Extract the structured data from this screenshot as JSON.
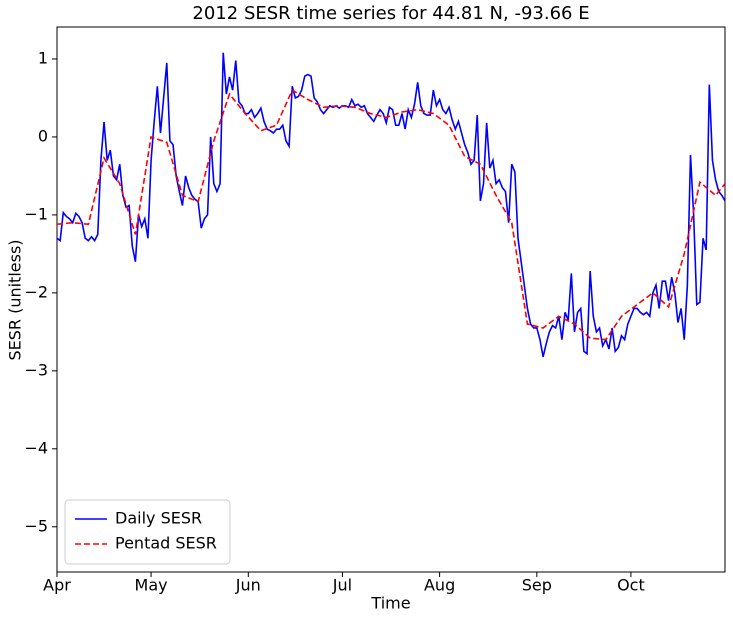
{
  "chart_data": {
    "type": "line",
    "title": "2012 SESR time series for 44.81 N, -93.66 E",
    "x_label": "Time",
    "y_label": "SESR (unitless)",
    "xlim": [
      0,
      213
    ],
    "ylim": [
      -5.58,
      1.41
    ],
    "xticks": [
      {
        "value": 0,
        "label": "Apr"
      },
      {
        "value": 30,
        "label": "May"
      },
      {
        "value": 61,
        "label": "Jun"
      },
      {
        "value": 91,
        "label": "Jul"
      },
      {
        "value": 122,
        "label": "Aug"
      },
      {
        "value": 153,
        "label": "Sep"
      },
      {
        "value": 183,
        "label": "Oct"
      }
    ],
    "yticks": [
      {
        "value": -5,
        "label": "−5"
      },
      {
        "value": -4,
        "label": "−4"
      },
      {
        "value": -3,
        "label": "−3"
      },
      {
        "value": -2,
        "label": "−2"
      },
      {
        "value": -1,
        "label": "−1"
      },
      0,
      1
    ],
    "grid": false,
    "legend": "lower left",
    "series": [
      {
        "name": "Daily SESR",
        "color": "#0000ff",
        "dash": "solid",
        "x": [
          0,
          1,
          2,
          3,
          4,
          5,
          6,
          7,
          8,
          9,
          10,
          11,
          12,
          13,
          14,
          15,
          16,
          17,
          18,
          19,
          20,
          21,
          22,
          23,
          24,
          25,
          26,
          27,
          28,
          29,
          30,
          31,
          32,
          33,
          34,
          35,
          36,
          37,
          38,
          39,
          40,
          41,
          42,
          43,
          44,
          45,
          46,
          47,
          48,
          49,
          50,
          51,
          52,
          53,
          54,
          55,
          56,
          57,
          58,
          59,
          60,
          61,
          62,
          63,
          64,
          65,
          66,
          67,
          68,
          69,
          70,
          71,
          72,
          73,
          74,
          75,
          76,
          77,
          78,
          79,
          80,
          81,
          82,
          83,
          84,
          85,
          86,
          87,
          88,
          89,
          90,
          91,
          92,
          93,
          94,
          95,
          96,
          97,
          98,
          99,
          100,
          101,
          102,
          103,
          104,
          105,
          106,
          107,
          108,
          109,
          110,
          111,
          112,
          113,
          114,
          115,
          116,
          117,
          118,
          119,
          120,
          121,
          122,
          123,
          124,
          125,
          126,
          127,
          128,
          129,
          130,
          131,
          132,
          133,
          134,
          135,
          136,
          137,
          138,
          139,
          140,
          141,
          142,
          143,
          144,
          145,
          146,
          147,
          148,
          149,
          150,
          151,
          152,
          153,
          154,
          155,
          156,
          157,
          158,
          159,
          160,
          161,
          162,
          163,
          164,
          165,
          166,
          167,
          168,
          169,
          170,
          171,
          172,
          173,
          174,
          175,
          176,
          177,
          178,
          179,
          180,
          181,
          182,
          183,
          184,
          185,
          186,
          187,
          188,
          189,
          190,
          191,
          192,
          193,
          194,
          195,
          196,
          197,
          198,
          199,
          200,
          201,
          202,
          203,
          204,
          205,
          206,
          207,
          208,
          209,
          210,
          211,
          212,
          213
        ],
        "values": [
          -1.3,
          -1.33,
          -0.97,
          -1.02,
          -1.05,
          -1.1,
          -0.98,
          -1.02,
          -1.1,
          -1.3,
          -1.33,
          -1.28,
          -1.33,
          -1.25,
          -0.3,
          0.19,
          -0.3,
          -0.17,
          -0.5,
          -0.55,
          -0.35,
          -0.75,
          -0.9,
          -0.88,
          -1.4,
          -1.6,
          -1.0,
          -1.15,
          -1.05,
          -1.3,
          -0.3,
          0.2,
          0.65,
          0.05,
          0.5,
          0.95,
          -0.05,
          -0.1,
          -0.5,
          -0.7,
          -0.88,
          -0.5,
          -0.65,
          -0.75,
          -0.8,
          -0.83,
          -1.17,
          -1.05,
          -1.0,
          0.0,
          -0.6,
          -0.7,
          -0.6,
          1.08,
          0.55,
          0.77,
          0.6,
          0.98,
          0.45,
          0.4,
          0.3,
          0.3,
          0.35,
          0.25,
          0.3,
          0.37,
          0.2,
          0.1,
          0.08,
          0.05,
          0.1,
          0.1,
          0.15,
          -0.05,
          -0.12,
          0.65,
          0.5,
          0.52,
          0.6,
          0.78,
          0.8,
          0.78,
          0.5,
          0.45,
          0.35,
          0.3,
          0.35,
          0.4,
          0.38,
          0.4,
          0.37,
          0.4,
          0.4,
          0.38,
          0.48,
          0.4,
          0.42,
          0.38,
          0.4,
          0.3,
          0.25,
          0.2,
          0.28,
          0.35,
          0.3,
          0.18,
          0.38,
          0.35,
          0.15,
          0.15,
          0.3,
          0.1,
          0.35,
          0.25,
          0.42,
          0.7,
          0.4,
          0.3,
          0.28,
          0.28,
          0.6,
          0.4,
          0.48,
          0.35,
          0.3,
          0.38,
          0.22,
          0.1,
          0.2,
          0.05,
          -0.1,
          -0.2,
          -0.35,
          -0.3,
          0.28,
          -0.82,
          -0.6,
          0.18,
          -0.4,
          -0.3,
          -0.6,
          -0.55,
          -0.65,
          -0.7,
          -1.1,
          -0.35,
          -0.45,
          -1.3,
          -1.6,
          -1.9,
          -2.2,
          -2.4,
          -2.45,
          -2.45,
          -2.6,
          -2.82,
          -2.65,
          -2.5,
          -2.42,
          -2.45,
          -2.3,
          -2.6,
          -2.25,
          -2.35,
          -1.75,
          -2.5,
          -2.25,
          -2.2,
          -2.75,
          -2.78,
          -1.72,
          -2.3,
          -2.5,
          -2.45,
          -2.68,
          -2.6,
          -2.72,
          -2.45,
          -2.75,
          -2.7,
          -2.55,
          -2.6,
          -2.4,
          -2.3,
          -2.2,
          -2.2,
          -2.25,
          -2.28,
          -2.25,
          -2.3,
          -2.0,
          -1.9,
          -2.2,
          -1.85,
          -1.85,
          -2.1,
          -1.8,
          -2.0,
          -2.38,
          -2.2,
          -2.6,
          -1.9,
          -0.23,
          -1.0,
          -2.15,
          -2.12,
          -1.3,
          -1.45,
          0.67,
          -0.3,
          -0.55,
          -0.7,
          -0.75,
          -0.82
        ]
      },
      {
        "name": "Pentad SESR",
        "color": "#ff0000",
        "dash": "dashed",
        "x": [
          0,
          5,
          10,
          15,
          20,
          25,
          30,
          35,
          40,
          45,
          50,
          55,
          60,
          65,
          70,
          75,
          80,
          85,
          90,
          95,
          100,
          105,
          110,
          115,
          120,
          125,
          130,
          135,
          140,
          145,
          150,
          155,
          160,
          165,
          170,
          175,
          180,
          185,
          190,
          195,
          200,
          205,
          210,
          213
        ],
        "values": [
          -1.12,
          -1.1,
          -1.12,
          -0.27,
          -0.6,
          -1.25,
          0.0,
          -0.07,
          -0.75,
          -0.83,
          -0.05,
          0.55,
          0.3,
          0.08,
          0.15,
          0.6,
          0.48,
          0.38,
          0.4,
          0.38,
          0.3,
          0.25,
          0.32,
          0.35,
          0.3,
          0.15,
          -0.25,
          -0.35,
          -0.75,
          -1.1,
          -2.4,
          -2.45,
          -2.3,
          -2.4,
          -2.58,
          -2.6,
          -2.3,
          -2.15,
          -2.0,
          -2.18,
          -1.5,
          -0.58,
          -0.75,
          -0.6
        ]
      }
    ]
  }
}
